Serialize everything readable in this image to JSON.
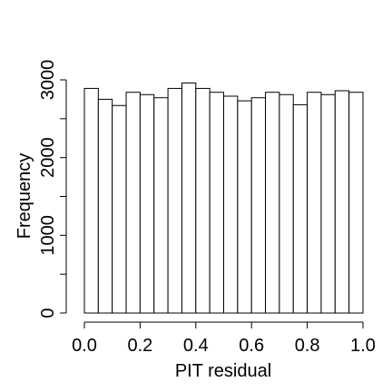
{
  "chart_data": {
    "type": "histogram",
    "xlabel": "PIT residual",
    "ylabel": "Frequency",
    "bins": [
      0,
      0.05,
      0.1,
      0.15,
      0.2,
      0.25,
      0.3,
      0.35,
      0.4,
      0.45,
      0.5,
      0.55,
      0.6,
      0.65,
      0.7,
      0.75,
      0.8,
      0.85,
      0.9,
      0.95,
      1
    ],
    "values": [
      2890,
      2750,
      2670,
      2840,
      2810,
      2770,
      2890,
      2960,
      2890,
      2840,
      2790,
      2730,
      2770,
      2840,
      2810,
      2680,
      2840,
      2810,
      2860,
      2840
    ],
    "color": "#ffffff",
    "xlim": [
      0,
      1
    ],
    "xticks": [
      {
        "value": 0,
        "label": "0.0"
      },
      0.2,
      0.4,
      0.6,
      0.8,
      {
        "value": 1,
        "label": "1.0"
      }
    ],
    "ylim": [
      0,
      3000
    ],
    "yticks": [
      0,
      1000,
      2000,
      3000
    ],
    "yminorticks": [
      500,
      1500,
      2500
    ]
  }
}
